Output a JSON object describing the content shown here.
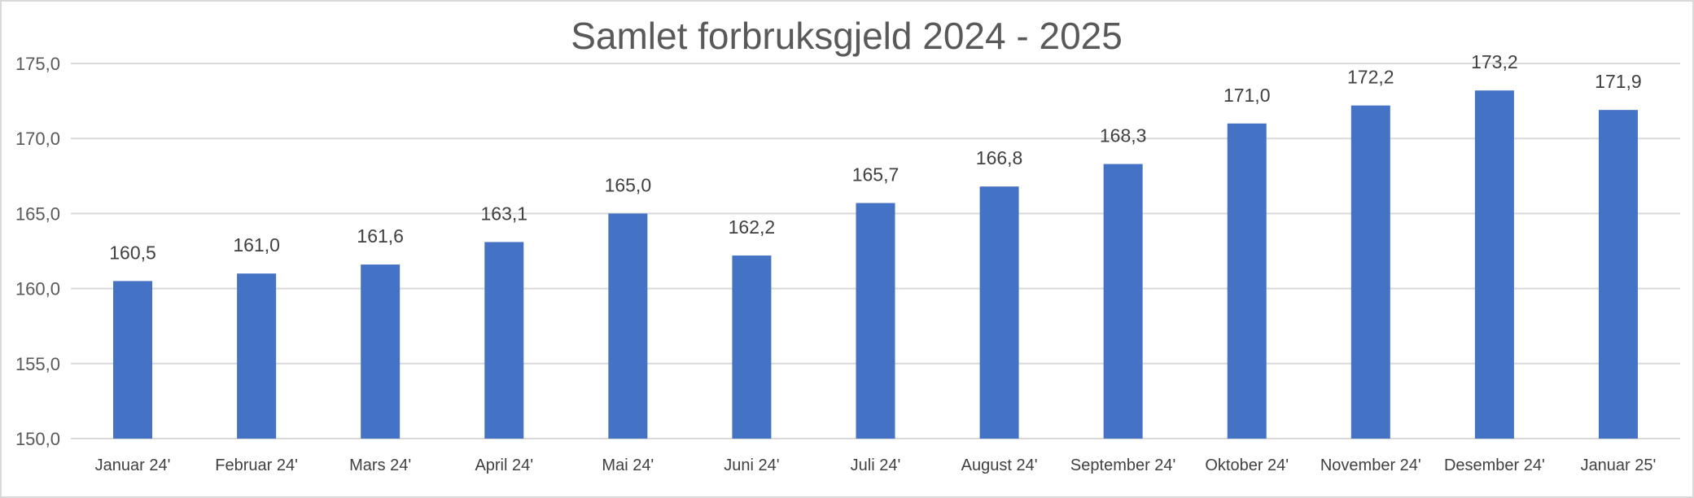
{
  "chart_data": {
    "type": "bar",
    "title": "Samlet forbruksgjeld 2024 - 2025",
    "xlabel": "",
    "ylabel": "",
    "categories": [
      "Januar 24'",
      "Februar 24'",
      "Mars 24'",
      "April 24'",
      "Mai 24'",
      "Juni 24'",
      "Juli 24'",
      "August 24'",
      "September 24'",
      "Oktober 24'",
      "November 24'",
      "Desember 24'",
      "Januar 25'"
    ],
    "values": [
      160.5,
      161.0,
      161.6,
      163.1,
      165.0,
      162.2,
      165.7,
      166.8,
      168.3,
      171.0,
      172.2,
      173.2,
      171.9
    ],
    "data_labels": [
      "160,5",
      "161,0",
      "161,6",
      "163,1",
      "165,0",
      "162,2",
      "165,7",
      "166,8",
      "168,3",
      "171,0",
      "172,2",
      "173,2",
      "171,9"
    ],
    "ylim": [
      150,
      175
    ],
    "yticks": [
      150,
      155,
      160,
      165,
      170,
      175
    ],
    "ytick_labels": [
      "150,0",
      "155,0",
      "160,0",
      "165,0",
      "170,0",
      "175,0"
    ],
    "grid": true,
    "legend": "none",
    "colors": {
      "bar": "#4472C4",
      "grid": "#d9d9d9",
      "title": "#595959",
      "text": "#404040"
    }
  }
}
